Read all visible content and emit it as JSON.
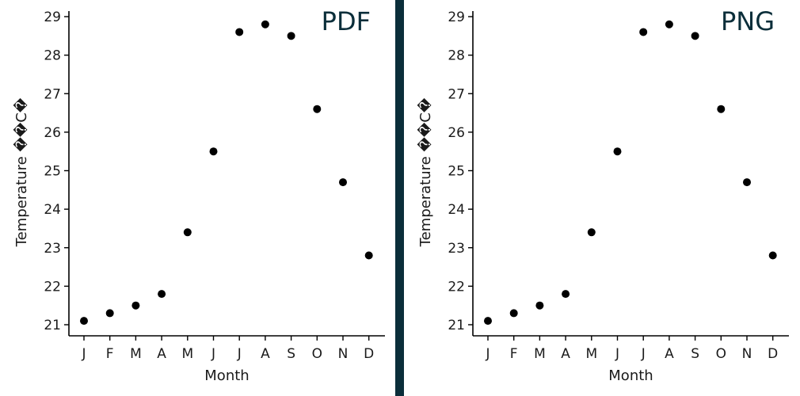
{
  "colors": {
    "divider": "#0b2e3a",
    "tag": "#0b2e3a",
    "point": "#000000",
    "axis": "#000000"
  },
  "chart_data": [
    {
      "type": "scatter",
      "panel_label": "PDF",
      "categories": [
        "J",
        "F",
        "M",
        "A",
        "M",
        "J",
        "J",
        "A",
        "S",
        "O",
        "N",
        "D"
      ],
      "values": [
        21.1,
        21.3,
        21.5,
        21.8,
        23.4,
        25.5,
        28.6,
        28.8,
        28.5,
        26.6,
        24.7,
        22.8
      ],
      "xlabel": "Month",
      "ylabel": "Temperature ��C�",
      "ylim": [
        20.8,
        29.2
      ],
      "yticks": [
        21,
        22,
        23,
        24,
        25,
        26,
        27,
        28,
        29
      ],
      "grid": false,
      "legend": "none"
    },
    {
      "type": "scatter",
      "panel_label": "PNG",
      "categories": [
        "J",
        "F",
        "M",
        "A",
        "M",
        "J",
        "J",
        "A",
        "S",
        "O",
        "N",
        "D"
      ],
      "values": [
        21.1,
        21.3,
        21.5,
        21.8,
        23.4,
        25.5,
        28.6,
        28.8,
        28.5,
        26.6,
        24.7,
        22.8
      ],
      "xlabel": "Month",
      "ylabel": "Temperature ��C�",
      "ylim": [
        20.8,
        29.2
      ],
      "yticks": [
        21,
        22,
        23,
        24,
        25,
        26,
        27,
        28,
        29
      ],
      "grid": false,
      "legend": "none"
    }
  ]
}
